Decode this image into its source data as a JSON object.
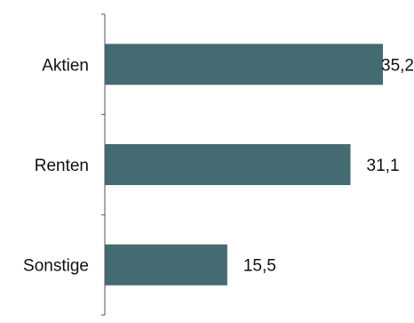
{
  "chart_data": {
    "type": "bar",
    "orientation": "horizontal",
    "categories": [
      "Aktien",
      "Renten",
      "Sonstige"
    ],
    "values": [
      35.2,
      31.1,
      15.5
    ],
    "value_labels": [
      "35,2",
      "31,1",
      "15,5"
    ],
    "title": "",
    "xlabel": "",
    "ylabel": "",
    "grid": false,
    "bar_color": "#456b72"
  }
}
